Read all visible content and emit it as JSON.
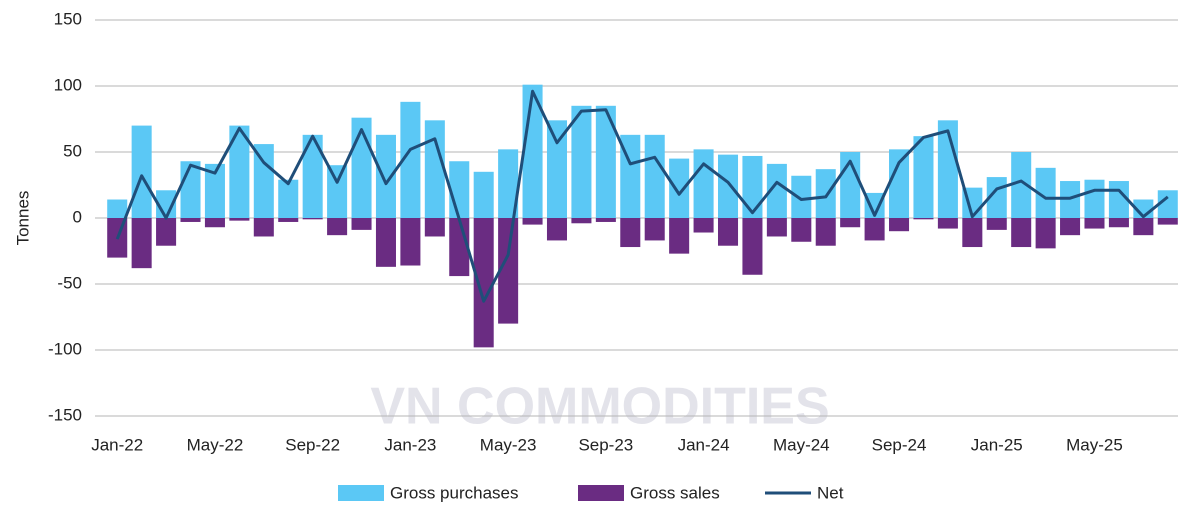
{
  "chart_data": {
    "type": "bar-line",
    "y_label": "Tonnes",
    "watermark": "VN COMMODITIES",
    "categories": [
      "Jan-22",
      null,
      null,
      null,
      "May-22",
      null,
      null,
      null,
      "Sep-22",
      null,
      null,
      null,
      "Jan-23",
      null,
      null,
      null,
      "May-23",
      null,
      null,
      null,
      "Sep-23",
      null,
      null,
      null,
      "Jan-24",
      null,
      null,
      null,
      "May-24",
      null,
      null,
      null,
      "Sep-24",
      null,
      null,
      null,
      "Jan-25",
      null,
      null,
      null,
      "May-25",
      null,
      null,
      null
    ],
    "series": [
      {
        "name": "Gross purchases",
        "kind": "bar",
        "color": "#5bc8f5",
        "values": [
          14,
          70,
          21,
          43,
          41,
          70,
          56,
          29,
          63,
          40,
          76,
          63,
          88,
          74,
          43,
          35,
          52,
          101,
          74,
          85,
          85,
          63,
          63,
          45,
          52,
          48,
          47,
          41,
          32,
          37,
          50,
          19,
          52,
          62,
          74,
          23,
          31,
          50,
          38,
          28,
          29,
          28,
          14,
          21
        ]
      },
      {
        "name": "Gross sales",
        "kind": "bar",
        "color": "#6a2c82",
        "values": [
          -30,
          -38,
          -21,
          -3,
          -7,
          -2,
          -14,
          -3,
          -1,
          -13,
          -9,
          -37,
          -36,
          -14,
          -44,
          -98,
          -80,
          -5,
          -17,
          -4,
          -3,
          -22,
          -17,
          -27,
          -11,
          -21,
          -43,
          -14,
          -18,
          -21,
          -7,
          -17,
          -10,
          -1,
          -8,
          -22,
          -9,
          -22,
          -23,
          -13,
          -8,
          -7,
          -13,
          -5
        ]
      },
      {
        "name": "Net",
        "kind": "line",
        "color": "#1f4e79",
        "values": [
          -16,
          32,
          0,
          40,
          34,
          68,
          42,
          26,
          62,
          27,
          67,
          26,
          52,
          60,
          -1,
          -63,
          -28,
          96,
          57,
          81,
          82,
          41,
          46,
          18,
          41,
          27,
          4,
          27,
          14,
          16,
          43,
          2,
          42,
          61,
          66,
          1,
          22,
          28,
          15,
          15,
          21,
          21,
          1,
          16
        ]
      }
    ],
    "ylim": [
      -150,
      150
    ],
    "yticks": [
      -150,
      -100,
      -50,
      0,
      50,
      100,
      150
    ],
    "grid": true
  }
}
